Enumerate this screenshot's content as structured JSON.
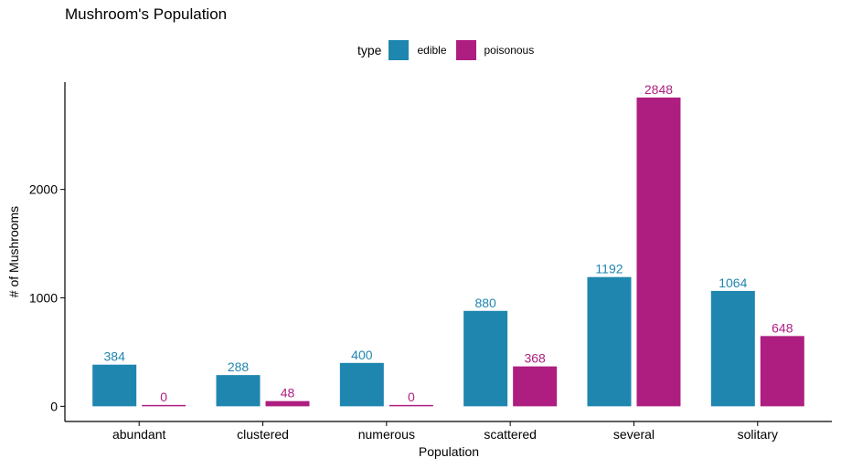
{
  "chart_data": {
    "type": "bar",
    "title": "Mushroom's Population",
    "xlabel": "Population",
    "ylabel": "# of Mushrooms",
    "categories": [
      "abundant",
      "clustered",
      "numerous",
      "scattered",
      "several",
      "solitary"
    ],
    "series": [
      {
        "name": "edible",
        "color": "#1f86b0",
        "values": [
          384,
          288,
          400,
          880,
          1192,
          1064
        ]
      },
      {
        "name": "poisonous",
        "color": "#ae1e80",
        "values": [
          0,
          48,
          0,
          368,
          2848,
          648
        ]
      }
    ],
    "legend": {
      "title": "type",
      "position": "top"
    },
    "yticks": [
      0,
      1000,
      2000
    ],
    "ylim": [
      -140,
      2990
    ],
    "grid": false
  }
}
